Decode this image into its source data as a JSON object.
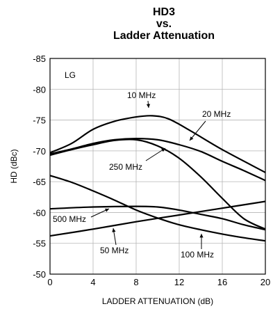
{
  "chart_data": {
    "type": "line",
    "title_lines": [
      "HD3",
      "vs.",
      "Ladder Attenuation"
    ],
    "xlabel": "LADDER ATTENUATION (dB)",
    "ylabel": "HD (dBc)",
    "xlim": [
      0,
      20
    ],
    "ylim": [
      -50,
      -85
    ],
    "xticks": [
      "0",
      "4",
      "8",
      "12",
      "16",
      "20"
    ],
    "yticks": [
      "-85",
      "-80",
      "-75",
      "-70",
      "-65",
      "-60",
      "-55",
      "-50"
    ],
    "grid": true,
    "inset_label": "LG",
    "series": [
      {
        "name": "10 MHz",
        "x": [
          0,
          2,
          4,
          6,
          8,
          9.5,
          11,
          13,
          16,
          20
        ],
        "y": [
          -69.7,
          -71.2,
          -73.5,
          -74.8,
          -75.5,
          -75.7,
          -75.2,
          -73.3,
          -70.2,
          -66.5
        ]
      },
      {
        "name": "20 MHz",
        "x": [
          0,
          2,
          4,
          6,
          8,
          10,
          12,
          14,
          16,
          18,
          20
        ],
        "y": [
          -69.5,
          -70.3,
          -71.2,
          -71.8,
          -72.0,
          -71.8,
          -71.0,
          -69.9,
          -68.3,
          -66.8,
          -65.2
        ]
      },
      {
        "name": "250 MHz",
        "x": [
          0,
          2,
          4,
          6,
          8,
          10,
          12,
          14,
          16,
          18,
          20
        ],
        "y": [
          -69.3,
          -70.2,
          -71.0,
          -71.7,
          -71.8,
          -70.8,
          -68.8,
          -65.8,
          -62.3,
          -59.0,
          -57.3
        ]
      },
      {
        "name": "500 MHz",
        "x": [
          0,
          4,
          8,
          10,
          12,
          14,
          16,
          18,
          20
        ],
        "y": [
          -60.6,
          -60.9,
          -61.0,
          -60.9,
          -60.4,
          -59.7,
          -59.0,
          -58.0,
          -57.2
        ]
      },
      {
        "name": "50 MHz",
        "x": [
          0,
          4,
          8,
          12,
          16,
          20
        ],
        "y": [
          -56.2,
          -57.3,
          -58.5,
          -59.6,
          -60.7,
          -61.8
        ]
      },
      {
        "name": "100 MHz",
        "x": [
          0,
          2,
          4,
          6,
          8,
          10,
          12,
          14,
          16,
          18,
          20
        ],
        "y": [
          -66.0,
          -64.9,
          -63.5,
          -62.0,
          -60.4,
          -59.1,
          -58.0,
          -57.2,
          -56.5,
          -55.9,
          -55.4
        ]
      }
    ],
    "annotations": [
      {
        "text": "10 MHz",
        "series": "10 MHz"
      },
      {
        "text": "20 MHz",
        "series": "20 MHz"
      },
      {
        "text": "250 MHz",
        "series": "250 MHz"
      },
      {
        "text": "500 MHz",
        "series": "500 MHz"
      },
      {
        "text": "50 MHz",
        "series": "50 MHz"
      },
      {
        "text": "100 MHz",
        "series": "100 MHz"
      }
    ]
  }
}
